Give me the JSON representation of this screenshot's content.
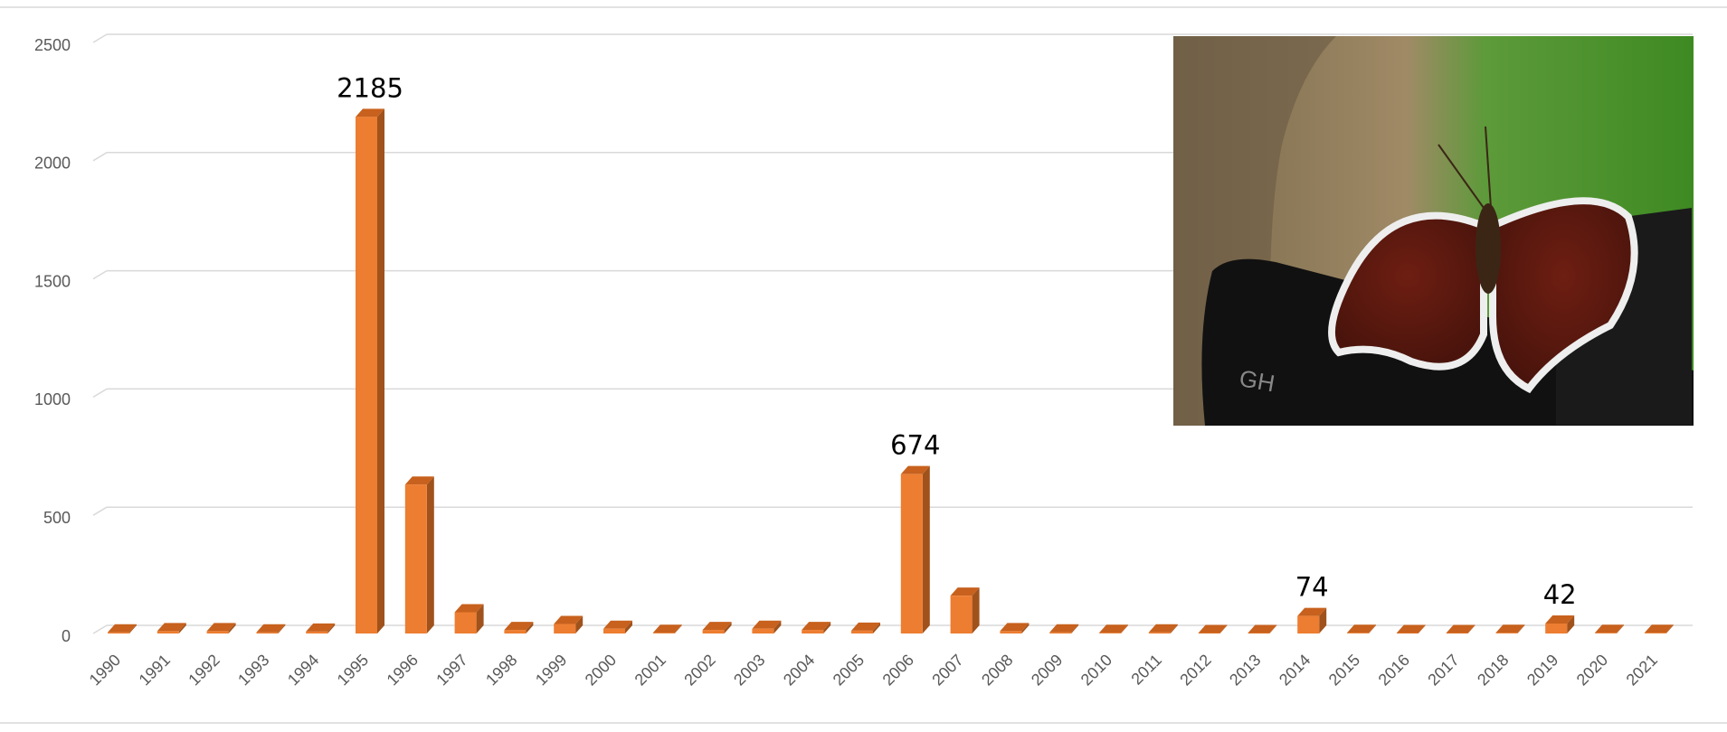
{
  "chart_data": {
    "type": "bar3d",
    "categories": [
      "1990",
      "1991",
      "1992",
      "1993",
      "1994",
      "1995",
      "1996",
      "1997",
      "1998",
      "1999",
      "2000",
      "2001",
      "2002",
      "2003",
      "2004",
      "2005",
      "2006",
      "2007",
      "2008",
      "2009",
      "2010",
      "2011",
      "2012",
      "2013",
      "2014",
      "2015",
      "2016",
      "2017",
      "2018",
      "2019",
      "2020",
      "2021"
    ],
    "values": [
      5,
      10,
      10,
      5,
      8,
      2185,
      630,
      90,
      15,
      40,
      20,
      3,
      15,
      20,
      15,
      12,
      674,
      160,
      10,
      5,
      3,
      5,
      2,
      2,
      74,
      3,
      2,
      2,
      3,
      42,
      3,
      3
    ],
    "data_labels": [
      null,
      null,
      null,
      null,
      null,
      2185,
      null,
      null,
      null,
      null,
      null,
      null,
      null,
      null,
      null,
      null,
      674,
      null,
      null,
      null,
      null,
      null,
      null,
      null,
      74,
      null,
      null,
      null,
      null,
      42,
      null,
      null
    ],
    "color": "#ed7d31",
    "ylim": [
      0,
      2500
    ],
    "yticks": [
      0,
      500,
      1000,
      1500,
      2000,
      2500
    ],
    "grid": true
  }
}
